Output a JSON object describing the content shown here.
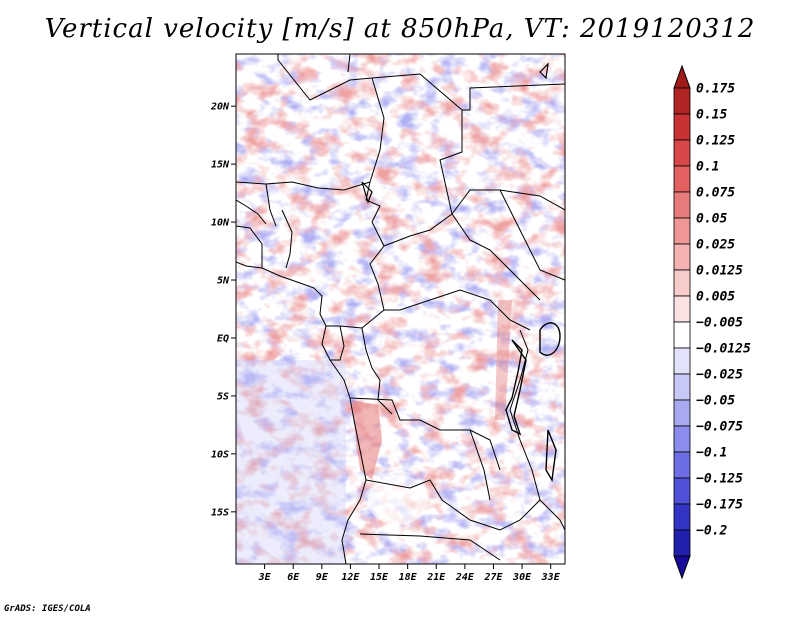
{
  "title": "Vertical velocity [m/s] at 850hPa, VT: 2019120312",
  "credit": "GrADS: IGES/COLA",
  "map": {
    "lon_range": [
      0,
      34.5
    ],
    "lat_range": [
      -19.5,
      24.5
    ],
    "lat_ticks": [
      {
        "value": 20,
        "label": "20N"
      },
      {
        "value": 15,
        "label": "15N"
      },
      {
        "value": 10,
        "label": "10N"
      },
      {
        "value": 5,
        "label": "5N"
      },
      {
        "value": 0,
        "label": "EQ"
      },
      {
        "value": -5,
        "label": "5S"
      },
      {
        "value": -10,
        "label": "10S"
      },
      {
        "value": -15,
        "label": "15S"
      }
    ],
    "lon_ticks": [
      {
        "value": 3,
        "label": "3E"
      },
      {
        "value": 6,
        "label": "6E"
      },
      {
        "value": 9,
        "label": "9E"
      },
      {
        "value": 12,
        "label": "12E"
      },
      {
        "value": 15,
        "label": "15E"
      },
      {
        "value": 18,
        "label": "18E"
      },
      {
        "value": 21,
        "label": "21E"
      },
      {
        "value": 24,
        "label": "24E"
      },
      {
        "value": 27,
        "label": "27E"
      },
      {
        "value": 30,
        "label": "30E"
      },
      {
        "value": 33,
        "label": "33E"
      }
    ]
  },
  "colorbar": {
    "top_color": "#a01a1a",
    "bottom_color": "#1a0a9a",
    "bins": [
      {
        "label": "0.175",
        "color": "#b02424"
      },
      {
        "label": "0.15",
        "color": "#c83232"
      },
      {
        "label": "0.125",
        "color": "#d84848"
      },
      {
        "label": "0.1",
        "color": "#e26060"
      },
      {
        "label": "0.075",
        "color": "#e87c7c"
      },
      {
        "label": "0.05",
        "color": "#ef9797"
      },
      {
        "label": "0.025",
        "color": "#f5b2b2"
      },
      {
        "label": "0.0125",
        "color": "#f9cccc"
      },
      {
        "label": "0.005",
        "color": "#fce2e2"
      },
      {
        "label": "−0.005",
        "color": "#ffffff"
      },
      {
        "label": "−0.0125",
        "color": "#e2e2fb"
      },
      {
        "label": "−0.025",
        "color": "#c8c8f7"
      },
      {
        "label": "−0.05",
        "color": "#a9a9f1"
      },
      {
        "label": "−0.075",
        "color": "#8c8cec"
      },
      {
        "label": "−0.1",
        "color": "#6e6ee4"
      },
      {
        "label": "−0.125",
        "color": "#5050d8"
      },
      {
        "label": "−0.175",
        "color": "#3434c4"
      },
      {
        "label": "−0.2",
        "color": "#2020ac"
      }
    ]
  }
}
